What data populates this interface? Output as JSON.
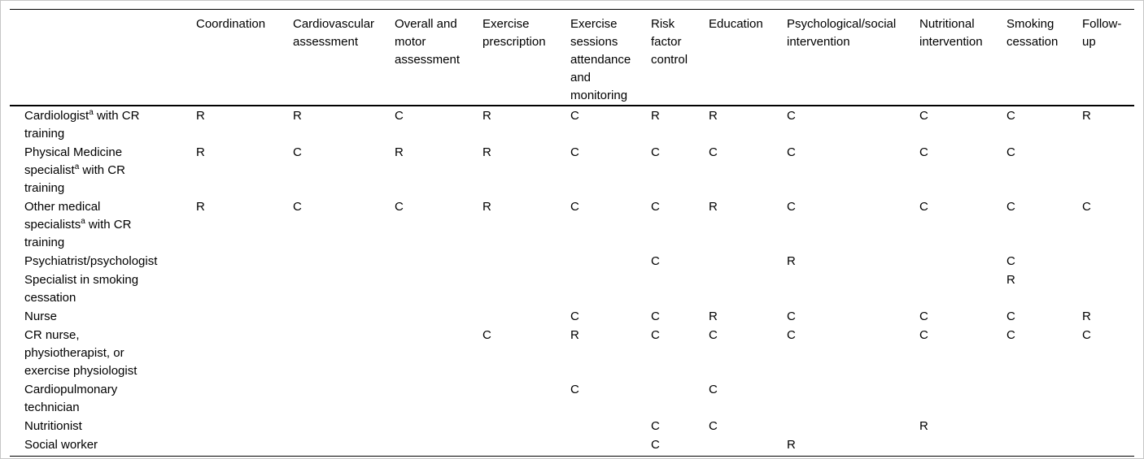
{
  "page": {
    "background_color": "#ffffff",
    "frame_border_color": "#c6c6c6",
    "rule_color": "#000000",
    "text_color": "#000000"
  },
  "table": {
    "corner_label": "",
    "columns": [
      "Coordination",
      "Cardiovascular assessment",
      "Overall and motor assessment",
      "Exercise prescription",
      "Exercise sessions attendance and monitoring",
      "Risk factor control",
      "Education",
      "Psychological/social intervention",
      "Nutritional intervention",
      "Smoking cessation",
      "Follow-up"
    ],
    "rows": [
      {
        "label": "Cardiologist",
        "sup": "a",
        "label_rest": " with CR training",
        "values": [
          "R",
          "R",
          "C",
          "R",
          "C",
          "R",
          "R",
          "C",
          "C",
          "C",
          "R"
        ]
      },
      {
        "label": "Physical Medicine specialist",
        "sup": "a",
        "label_rest": " with CR training",
        "values": [
          "R",
          "C",
          "R",
          "R",
          "C",
          "C",
          "C",
          "C",
          "C",
          "C",
          ""
        ]
      },
      {
        "label": "Other medical specialists",
        "sup": "a",
        "label_rest": " with CR training",
        "values": [
          "R",
          "C",
          "C",
          "R",
          "C",
          "C",
          "R",
          "C",
          "C",
          "C",
          "C"
        ]
      },
      {
        "label": "Psychiatrist/psychologist",
        "sup": "",
        "label_rest": "",
        "values": [
          "",
          "",
          "",
          "",
          "",
          "C",
          "",
          "R",
          "",
          "C",
          ""
        ]
      },
      {
        "label": "Specialist in smoking cessation",
        "sup": "",
        "label_rest": "",
        "values": [
          "",
          "",
          "",
          "",
          "",
          "",
          "",
          "",
          "",
          "R",
          ""
        ]
      },
      {
        "label": "Nurse",
        "sup": "",
        "label_rest": "",
        "values": [
          "",
          "",
          "",
          "",
          "C",
          "C",
          "R",
          "C",
          "C",
          "C",
          "R"
        ]
      },
      {
        "label": "CR nurse, physiotherapist, or exercise physiologist",
        "sup": "",
        "label_rest": "",
        "values": [
          "",
          "",
          "",
          "C",
          "R",
          "C",
          "C",
          "C",
          "C",
          "C",
          "C"
        ]
      },
      {
        "label": "Cardiopulmonary technician",
        "sup": "",
        "label_rest": "",
        "values": [
          "",
          "",
          "",
          "",
          "C",
          "",
          "C",
          "",
          "",
          "",
          ""
        ]
      },
      {
        "label": "Nutritionist",
        "sup": "",
        "label_rest": "",
        "values": [
          "",
          "",
          "",
          "",
          "",
          "C",
          "C",
          "",
          "R",
          "",
          ""
        ]
      },
      {
        "label": "Social worker",
        "sup": "",
        "label_rest": "",
        "values": [
          "",
          "",
          "",
          "",
          "",
          "C",
          "",
          "R",
          "",
          "",
          ""
        ]
      }
    ]
  }
}
